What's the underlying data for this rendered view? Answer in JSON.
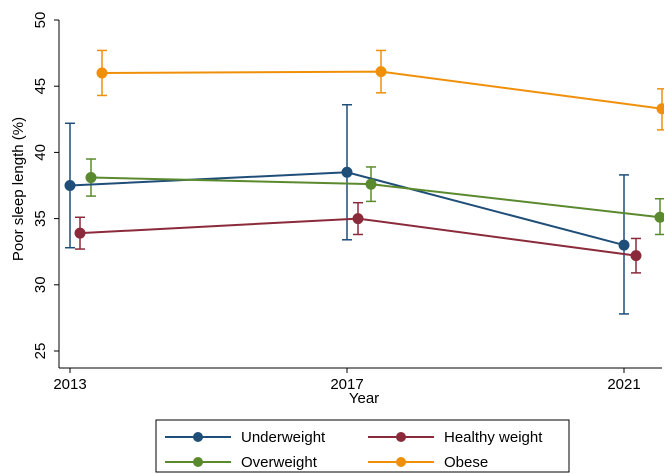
{
  "chart_data": {
    "type": "line",
    "xlabel": "Year",
    "ylabel": "Poor sleep length (%)",
    "x": [
      2013,
      2017,
      2021
    ],
    "xticks": [
      "2013",
      "2017",
      "2021"
    ],
    "ylim": [
      25,
      50
    ],
    "yticks": [
      25,
      30,
      35,
      40,
      45,
      50
    ],
    "grid": false,
    "legend_position": "bottom",
    "series": [
      {
        "name": "Underweight",
        "color": "#1f4e79",
        "values": [
          37.5,
          38.5,
          33.0
        ],
        "lower": [
          32.8,
          33.4,
          27.8
        ],
        "upper": [
          42.2,
          43.6,
          38.3
        ]
      },
      {
        "name": "Healthy weight",
        "color": "#8b2a3a",
        "values": [
          33.9,
          35.0,
          32.2
        ],
        "lower": [
          32.7,
          33.8,
          30.9
        ],
        "upper": [
          35.1,
          36.2,
          33.5
        ]
      },
      {
        "name": "Overweight",
        "color": "#5b8a2e",
        "values": [
          38.1,
          37.6,
          35.1
        ],
        "lower": [
          36.7,
          36.3,
          33.8
        ],
        "upper": [
          39.5,
          38.9,
          36.5
        ]
      },
      {
        "name": "Obese",
        "color": "#f0900a",
        "values": [
          46.0,
          46.1,
          43.3
        ],
        "lower": [
          44.3,
          44.5,
          41.7
        ],
        "upper": [
          47.7,
          47.7,
          44.8
        ]
      }
    ]
  }
}
